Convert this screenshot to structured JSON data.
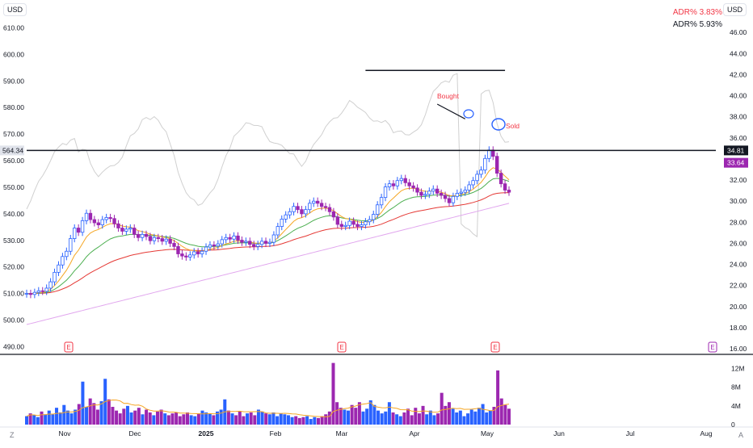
{
  "currency_left": "USD",
  "currency_right": "USD",
  "adr": [
    {
      "label": "ADR%",
      "value": "3.83%",
      "color": "#f23645"
    },
    {
      "label": "ADR%",
      "value": "5.93%",
      "color": "#131722"
    }
  ],
  "corner_left": "Z",
  "corner_right": "A",
  "earnings_marker": "E",
  "colors": {
    "up": "#2962ff",
    "down": "#9c27b0",
    "ema_fast": "#f5a623",
    "ema_mid": "#4caf50",
    "ema_slow": "#e53935",
    "sma_long": "#e1a6ee",
    "rs_line": "#d0d0d0",
    "volume_avg": "#f5a623"
  },
  "chart_data": {
    "type": "candlestick",
    "x_axis": {
      "labels": [
        "Nov",
        "Dec",
        "2025",
        "Feb",
        "Mar",
        "Apr",
        "May",
        "Jun",
        "Jul",
        "Aug"
      ]
    },
    "left_axis": {
      "ticks": [
        "610.00",
        "600.00",
        "590.00",
        "580.00",
        "570.00",
        "560.00",
        "550.00",
        "540.00",
        "530.00",
        "520.00",
        "510.00",
        "500.00",
        "490.00"
      ],
      "range": [
        488,
        615
      ]
    },
    "right_axis": {
      "ticks": [
        "46.00",
        "44.00",
        "42.00",
        "40.00",
        "38.00",
        "36.00",
        "32.00",
        "30.00",
        "28.00",
        "26.00",
        "24.00",
        "22.00",
        "20.00",
        "18.00",
        "16.00"
      ],
      "range": [
        15.7,
        47.7
      ]
    },
    "volume_axis": {
      "ticks": [
        "12M",
        "8M",
        "4M",
        "0"
      ],
      "range": [
        0,
        14
      ]
    },
    "price_labels": {
      "left_last": "564.34",
      "right_last": "34.81",
      "right_current": "33.64"
    },
    "current_price_color": "#9c27b0",
    "last_price_color": "#131722",
    "annotations": [
      {
        "text": "Bought",
        "color": "#f23645"
      },
      {
        "text": "Sold",
        "color": "#f23645"
      }
    ],
    "horizontal_lines": [
      {
        "price": 564.3,
        "from_index": 0,
        "to_index": 177
      },
      {
        "price": 42.4,
        "from_index": 85,
        "to_index": 120
      }
    ],
    "trendline": {
      "from": {
        "index": 103,
        "price": 39.2
      },
      "to": {
        "index": 110,
        "price": 37.8
      }
    },
    "bars_right_axis_price_start": 20.6,
    "series": {
      "ohlc_start": 21.2,
      "ohlc_steps": [
        0.1,
        -0.2,
        0.4,
        0.3,
        -0.1,
        0.6,
        1.2,
        1.8,
        1.4,
        1.6,
        1.0,
        2.4,
        2.0,
        -0.8,
        2.2,
        1.4,
        -1.2,
        -0.6,
        -0.4,
        1.0,
        0.4,
        -0.2,
        -1.0,
        -0.8,
        -0.6,
        0.4,
        0.2,
        -1.2,
        -0.6,
        0.6,
        -0.4,
        -0.8,
        0.6,
        -0.2,
        -0.5,
        0.4,
        -0.8,
        -0.6,
        -1.4,
        -0.4,
        -0.2,
        0.4,
        0.6,
        -0.4,
        0.5,
        0.8,
        0.4,
        -0.2,
        0.4,
        0.8,
        0.4,
        -0.3,
        0.6,
        -0.8,
        -0.4,
        0.2,
        -0.6,
        -0.4,
        0.4,
        0.6,
        -0.4,
        0.2,
        1.4,
        1.6,
        1.4,
        0.8,
        0.6,
        1.0,
        -0.6,
        -0.8,
        0.8,
        1.2,
        0.4,
        -0.4,
        -0.6,
        -0.2,
        -0.8,
        -1.0,
        -1.4,
        -0.4,
        0.2,
        0.8,
        -0.6,
        -0.4,
        0.3,
        0.6,
        0.4,
        1.0,
        1.8,
        1.4,
        2.0,
        0.6,
        -0.4,
        1.0,
        0.4,
        -0.8,
        -0.6,
        -0.4,
        -0.8,
        -0.6,
        0.2,
        0.6,
        0.4,
        -0.8,
        -0.4,
        -0.6,
        -0.8,
        1.2,
        0.6,
        0.2,
        0.4,
        1.0,
        0.8,
        1.2,
        0.8,
        2.2,
        1.6,
        -1.2,
        -3.2,
        -2.0,
        -1.2,
        -0.4
      ],
      "volume_m": [
        1.8,
        2.4,
        2.0,
        1.6,
        2.8,
        2.2,
        3.0,
        2.2,
        3.6,
        2.6,
        4.2,
        3.0,
        2.4,
        3.2,
        4.4,
        9.2,
        3.8,
        5.6,
        4.6,
        3.2,
        5.0,
        9.8,
        5.4,
        3.8,
        3.0,
        2.4,
        3.4,
        4.0,
        2.6,
        3.0,
        3.6,
        2.2,
        3.2,
        2.6,
        2.0,
        2.8,
        3.2,
        2.4,
        2.0,
        2.4,
        2.6,
        1.8,
        2.2,
        2.6,
        2.0,
        1.8,
        2.4,
        3.0,
        2.6,
        2.4,
        2.0,
        2.8,
        3.2,
        5.4,
        3.0,
        2.4,
        2.0,
        2.8,
        1.8,
        2.4,
        2.6,
        2.0,
        3.2,
        2.8,
        2.4,
        2.2,
        2.6,
        1.8,
        2.4,
        2.2,
        2.0,
        1.6,
        1.8,
        1.4,
        1.6,
        1.8,
        1.2,
        1.6,
        1.4,
        1.8,
        2.2,
        2.8,
        13.2,
        4.8,
        3.6,
        3.2,
        3.0,
        4.2,
        3.6,
        4.8,
        2.8,
        3.4,
        5.2,
        4.2,
        3.0,
        2.4,
        2.8,
        4.8,
        2.6,
        2.2,
        1.8,
        2.6,
        3.4,
        2.0,
        3.6,
        2.4,
        4.0,
        2.2,
        3.0,
        2.0,
        2.4,
        6.8,
        4.0,
        4.8,
        3.4,
        2.6,
        3.0,
        1.8,
        2.4,
        3.2,
        2.8,
        3.6,
        4.4,
        2.6,
        3.0,
        3.8,
        11.6,
        5.6,
        4.2,
        3.4
      ]
    }
  }
}
